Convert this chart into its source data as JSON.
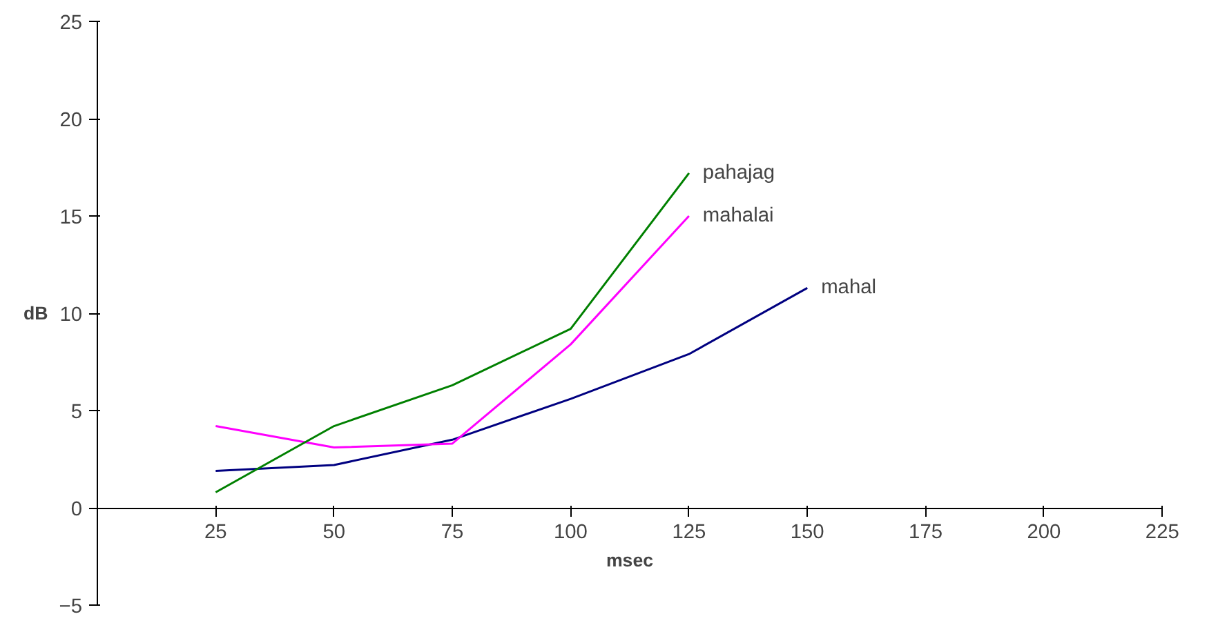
{
  "chart_data": {
    "type": "line",
    "xlabel": "msec",
    "ylabel": "dB",
    "x": [
      25,
      50,
      75,
      100,
      125,
      150
    ],
    "series": [
      {
        "name": "mahal",
        "color": "#000080",
        "values": [
          1.9,
          2.2,
          3.5,
          5.6,
          7.9,
          11.3
        ]
      },
      {
        "name": "mahalai",
        "color": "#ff00ff",
        "values": [
          4.2,
          3.1,
          3.3,
          8.4,
          15.0,
          null
        ]
      },
      {
        "name": "pahajag",
        "color": "#008000",
        "values": [
          0.8,
          4.2,
          6.3,
          9.2,
          17.2,
          null
        ]
      }
    ],
    "xlim": [
      0,
      225
    ],
    "xticks": [
      25,
      50,
      75,
      100,
      125,
      150,
      175,
      200,
      225
    ],
    "ylim": [
      -5,
      25
    ],
    "yticks": [
      -5,
      0,
      5,
      10,
      15,
      20,
      25
    ],
    "grid": false,
    "legend": false,
    "marker": "none",
    "line_style": "solid"
  }
}
